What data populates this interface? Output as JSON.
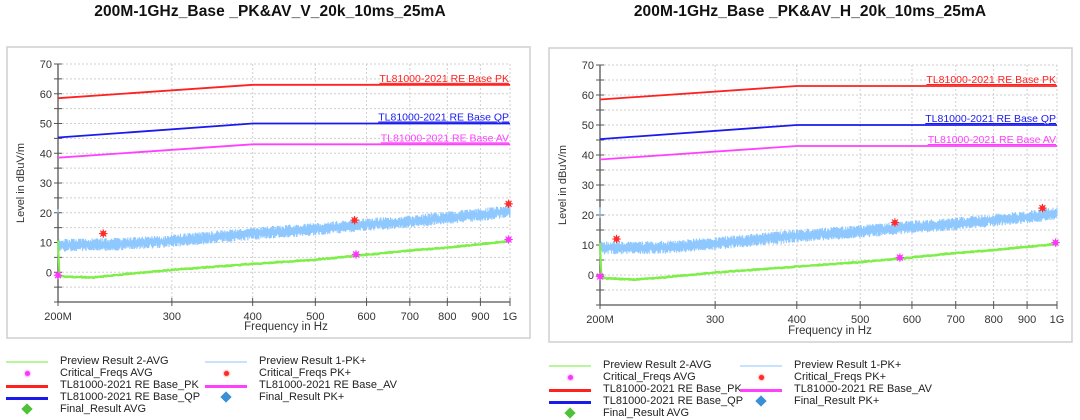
{
  "chart_data": [
    {
      "type": "line",
      "title": "200M-1GHz_Base _PK&AV_V_20k_10ms_25mA",
      "xlabel": "Frequency in Hz",
      "ylabel": "Level in dBuV/m",
      "xscale": "log",
      "xlim": [
        200,
        1000
      ],
      "ylim": [
        -10,
        70
      ],
      "xticks": [
        {
          "v": 200,
          "label": "200M"
        },
        {
          "v": 300,
          "label": "300"
        },
        {
          "v": 400,
          "label": "400"
        },
        {
          "v": 500,
          "label": "500"
        },
        {
          "v": 600,
          "label": "600"
        },
        {
          "v": 700,
          "label": "700"
        },
        {
          "v": 800,
          "label": "800"
        },
        {
          "v": 900,
          "label": "900"
        },
        {
          "v": 1000,
          "label": "1G"
        }
      ],
      "yticks": [
        {
          "v": 0,
          "label": "0"
        },
        {
          "v": 10,
          "label": "10"
        },
        {
          "v": 20,
          "label": "20"
        },
        {
          "v": 30,
          "label": "30"
        },
        {
          "v": 40,
          "label": "40"
        },
        {
          "v": 50,
          "label": "50"
        },
        {
          "v": 60,
          "label": "60"
        },
        {
          "v": 70,
          "label": "70"
        }
      ],
      "grid": true,
      "limit_lines": [
        {
          "name": "TL81000-2021  RE Base_PK",
          "label": "TL81000-2021  RE Base  PK",
          "color": "#ff2020",
          "points": [
            [
              200,
              58.5
            ],
            [
              400,
              63
            ],
            [
              1000,
              63
            ]
          ]
        },
        {
          "name": "TL81000-2021  RE Base_QP",
          "label": "TL81000-2021  RE Base  QP",
          "color": "#1a1aee",
          "points": [
            [
              200,
              45.3
            ],
            [
              400,
              50
            ],
            [
              1000,
              50
            ]
          ]
        },
        {
          "name": "TL81000-2021 RE Base_AV",
          "label": "TL81000-2021 RE Base  AV",
          "color": "#ff40ff",
          "points": [
            [
              200,
              38.5
            ],
            [
              400,
              43
            ],
            [
              1000,
              43
            ]
          ]
        }
      ],
      "series": [
        {
          "name": "Preview Result 1-PK+",
          "color": "#8ec8ff",
          "kind": "noise",
          "trend": [
            [
              200,
              9
            ],
            [
              250,
              9.5
            ],
            [
              300,
              10.5
            ],
            [
              400,
              13
            ],
            [
              500,
              14.5
            ],
            [
              600,
              16
            ],
            [
              700,
              17
            ],
            [
              800,
              18.3
            ],
            [
              900,
              19.3
            ],
            [
              1000,
              20.5
            ]
          ],
          "spread": 1.6
        },
        {
          "name": "Preview Result 2-AVG",
          "color": "#7fee4a",
          "kind": "noise",
          "trend": [
            [
              200,
              -1.3
            ],
            [
              225,
              -1.8
            ],
            [
              250,
              -0.8
            ],
            [
              300,
              0.8
            ],
            [
              400,
              2.8
            ],
            [
              500,
              4.2
            ],
            [
              575,
              5.5
            ],
            [
              700,
              7.3
            ],
            [
              800,
              8.3
            ],
            [
              900,
              9.4
            ],
            [
              1000,
              10.5
            ]
          ],
          "spread": 0.35
        }
      ],
      "markers": [
        {
          "name": "Critical_Freqs PK+",
          "color": "#ff2a2a",
          "points": [
            [
              235,
              13
            ],
            [
              575,
              17.5
            ],
            [
              995,
              23
            ]
          ]
        },
        {
          "name": "Critical_Freqs AVG",
          "color": "#ff33ff",
          "points": [
            [
              200,
              -1
            ],
            [
              578,
              6
            ],
            [
              995,
              11
            ]
          ]
        }
      ]
    },
    {
      "type": "line",
      "title": "200M-1GHz_Base _PK&AV_H_20k_10ms_25mA",
      "xlabel": "Frequency in Hz",
      "ylabel": "Level in dBuV/m",
      "xscale": "log",
      "xlim": [
        200,
        1000
      ],
      "ylim": [
        -10,
        70
      ],
      "xticks": [
        {
          "v": 200,
          "label": "200M"
        },
        {
          "v": 300,
          "label": "300"
        },
        {
          "v": 400,
          "label": "400"
        },
        {
          "v": 500,
          "label": "500"
        },
        {
          "v": 600,
          "label": "600"
        },
        {
          "v": 700,
          "label": "700"
        },
        {
          "v": 800,
          "label": "800"
        },
        {
          "v": 900,
          "label": "900"
        },
        {
          "v": 1000,
          "label": "1G"
        }
      ],
      "yticks": [
        {
          "v": 0,
          "label": "0"
        },
        {
          "v": 10,
          "label": "10"
        },
        {
          "v": 20,
          "label": "20"
        },
        {
          "v": 30,
          "label": "30"
        },
        {
          "v": 40,
          "label": "40"
        },
        {
          "v": 50,
          "label": "50"
        },
        {
          "v": 60,
          "label": "60"
        },
        {
          "v": 70,
          "label": "70"
        }
      ],
      "grid": true,
      "limit_lines": [
        {
          "name": "TL81000-2021  RE Base_PK",
          "label": "TL81000-2021  RE Base  PK",
          "color": "#ff2020",
          "points": [
            [
              200,
              58.5
            ],
            [
              400,
              63
            ],
            [
              1000,
              63
            ]
          ]
        },
        {
          "name": "TL81000-2021  RE Base_QP",
          "label": "TL81000-2021  RE Base  QP",
          "color": "#1a1aee",
          "points": [
            [
              200,
              45.3
            ],
            [
              400,
              50
            ],
            [
              1000,
              50
            ]
          ]
        },
        {
          "name": "TL81000-2021 RE Base_AV",
          "label": "TL81000-2021 RE Base  AV",
          "color": "#ff40ff",
          "points": [
            [
              200,
              38.5
            ],
            [
              400,
              43
            ],
            [
              1000,
              43
            ]
          ]
        }
      ],
      "series": [
        {
          "name": "Preview Result 1-PK+",
          "color": "#8ec8ff",
          "kind": "noise",
          "trend": [
            [
              200,
              9
            ],
            [
              250,
              9.2
            ],
            [
              300,
              10.5
            ],
            [
              400,
              13
            ],
            [
              500,
              14.5
            ],
            [
              600,
              16
            ],
            [
              700,
              17
            ],
            [
              800,
              18.3
            ],
            [
              900,
              19.3
            ],
            [
              1000,
              20.5
            ]
          ],
          "spread": 1.6
        },
        {
          "name": "Preview Result 2-AVG",
          "color": "#7fee4a",
          "kind": "noise",
          "trend": [
            [
              200,
              -1
            ],
            [
              225,
              -1.5
            ],
            [
              250,
              -0.8
            ],
            [
              300,
              0.8
            ],
            [
              400,
              2.8
            ],
            [
              500,
              4.3
            ],
            [
              575,
              5.5
            ],
            [
              700,
              7.3
            ],
            [
              800,
              8.3
            ],
            [
              900,
              9.4
            ],
            [
              1000,
              10.3
            ]
          ],
          "spread": 0.35
        }
      ],
      "markers": [
        {
          "name": "Critical_Freqs PK+",
          "color": "#ff2a2a",
          "points": [
            [
              212,
              12
            ],
            [
              565,
              17.5
            ],
            [
              950,
              22.3
            ]
          ]
        },
        {
          "name": "Critical_Freqs AVG",
          "color": "#ff33ff",
          "points": [
            [
              200,
              -0.5
            ],
            [
              575,
              5.8
            ],
            [
              995,
              10.8
            ]
          ]
        }
      ]
    }
  ],
  "legend": {
    "col1": [
      {
        "label": "Preview Result 2-AVG",
        "symbol": "line",
        "color": "#b9f59a"
      },
      {
        "label": "Critical_Freqs AVG",
        "symbol": "star",
        "color": "#ff33ff"
      },
      {
        "label": "TL81000-2021  RE Base_PK",
        "symbol": "line",
        "color": "#ff2020"
      },
      {
        "label": "TL81000-2021  RE Base_QP",
        "symbol": "line",
        "color": "#1a1aee"
      },
      {
        "label": "Final_Result AVG",
        "symbol": "diamond",
        "color": "#4fc23a"
      }
    ],
    "col2": [
      {
        "label": "Preview Result 1-PK+",
        "symbol": "line",
        "color": "#c6e2ff"
      },
      {
        "label": "Critical_Freqs PK+",
        "symbol": "star",
        "color": "#ff2a2a"
      },
      {
        "label": "TL81000-2021 RE Base_AV",
        "symbol": "line",
        "color": "#ff40ff"
      },
      {
        "label": "Final_Result PK+",
        "symbol": "diamond",
        "color": "#3a8fd8"
      }
    ]
  }
}
